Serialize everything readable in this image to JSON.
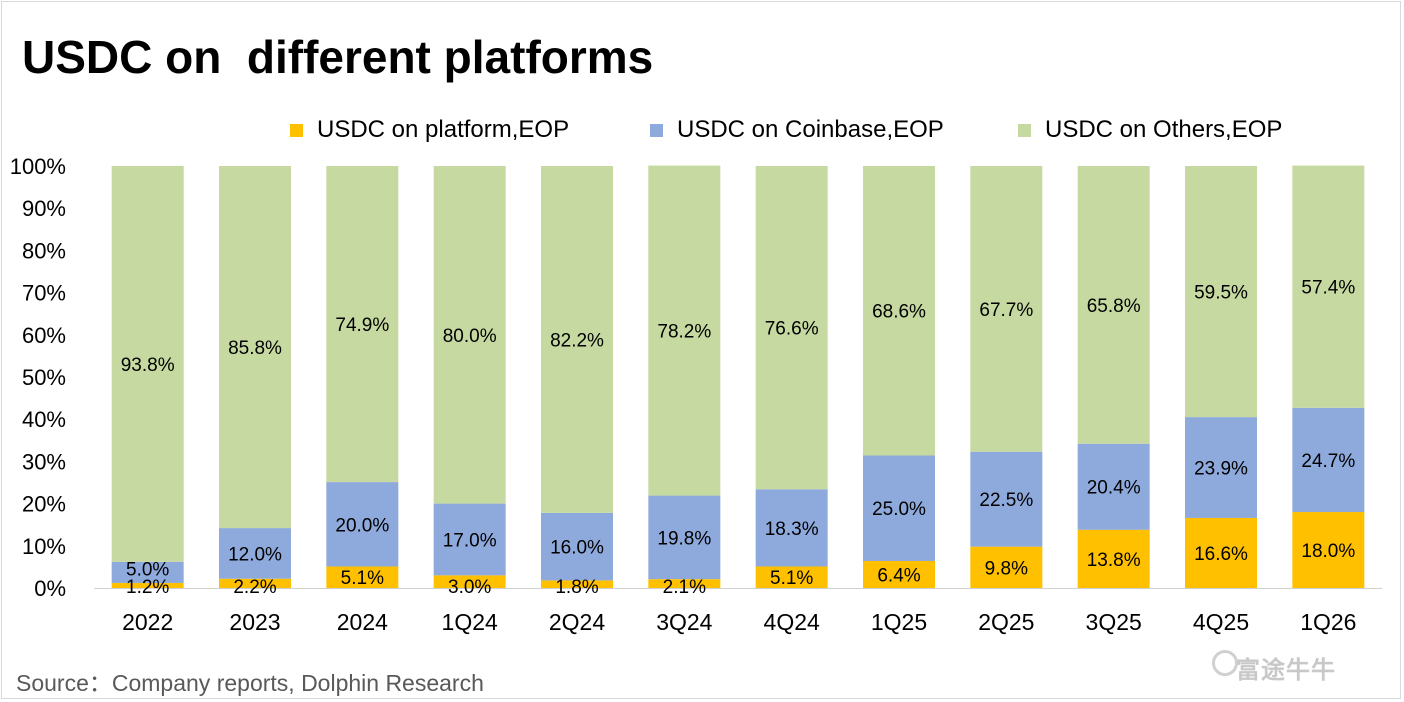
{
  "title": "USDC on  different platforms",
  "source": "Source：Company reports, Dolphin Research",
  "brand": "富途牛牛",
  "colors": {
    "platform": "#FFC000",
    "coinbase": "#8EA9DB",
    "others": "#C5D9A0"
  },
  "chart_data": {
    "type": "bar",
    "stacked": true,
    "categories": [
      "2022",
      "2023",
      "2024",
      "1Q24",
      "2Q24",
      "3Q24",
      "4Q24",
      "1Q25",
      "2Q25",
      "3Q25",
      "4Q25",
      "1Q26"
    ],
    "series": [
      {
        "name": "USDC on platform,EOP",
        "color": "#FFC000",
        "values": [
          1.2,
          2.2,
          5.1,
          3.0,
          1.8,
          2.1,
          5.1,
          6.4,
          9.8,
          13.8,
          16.6,
          18.0
        ],
        "labels": [
          "1.2%",
          "2.2%",
          "5.1%",
          "3.0%",
          "1.8%",
          "2.1%",
          "5.1%",
          "6.4%",
          "9.8%",
          "13.8%",
          "16.6%",
          "18.0%"
        ]
      },
      {
        "name": "USDC on Coinbase,EOP",
        "color": "#8EA9DB",
        "values": [
          5.0,
          12.0,
          20.0,
          17.0,
          16.0,
          19.8,
          18.3,
          25.0,
          22.5,
          20.4,
          23.9,
          24.7
        ],
        "labels": [
          "5.0%",
          "12.0%",
          "20.0%",
          "17.0%",
          "16.0%",
          "19.8%",
          "18.3%",
          "25.0%",
          "22.5%",
          "20.4%",
          "23.9%",
          "24.7%"
        ]
      },
      {
        "name": "USDC on Others,EOP",
        "color": "#C5D9A0",
        "values": [
          93.8,
          85.8,
          74.9,
          80.0,
          82.2,
          78.2,
          76.6,
          68.6,
          67.7,
          65.8,
          59.5,
          57.4
        ],
        "labels": [
          "93.8%",
          "85.8%",
          "74.9%",
          "80.0%",
          "82.2%",
          "78.2%",
          "76.6%",
          "68.6%",
          "67.7%",
          "65.8%",
          "59.5%",
          "57.4%"
        ]
      }
    ],
    "ylim": [
      0,
      100
    ],
    "yticks": [
      "0%",
      "10%",
      "20%",
      "30%",
      "40%",
      "50%",
      "60%",
      "70%",
      "80%",
      "90%",
      "100%"
    ],
    "legend_position": "top",
    "grid": false
  }
}
